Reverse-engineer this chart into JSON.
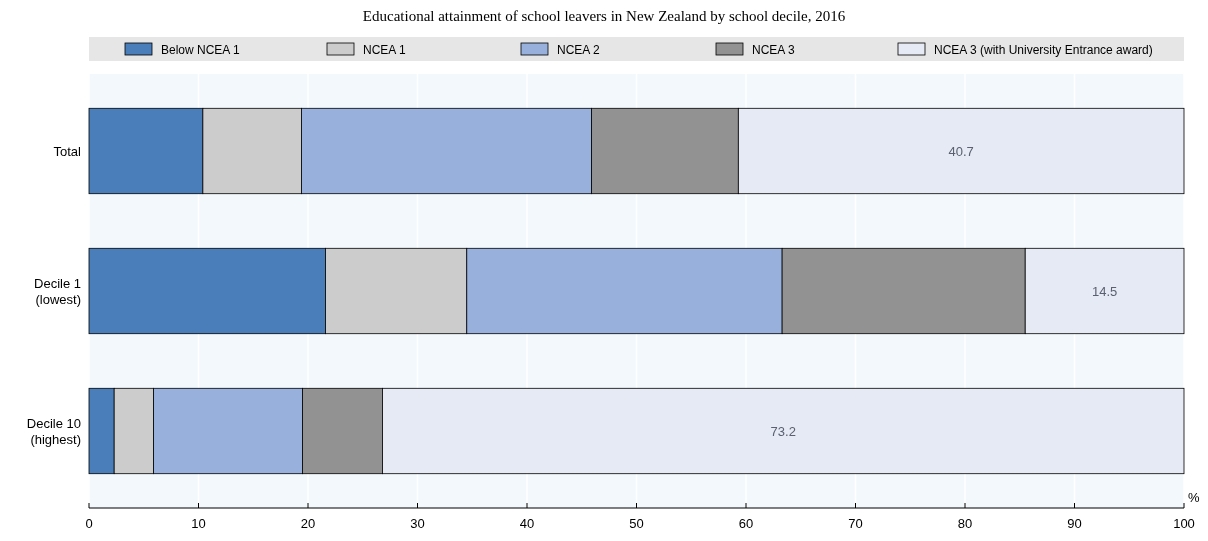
{
  "chart_data": {
    "type": "bar",
    "orientation": "horizontal",
    "stacked": true,
    "title": "Educational attainment of school leavers in New Zealand by school decile, 2016",
    "xlabel": "%",
    "categories": [
      "Total",
      "Decile 1\n(lowest)",
      "Decile 10\n(highest)"
    ],
    "series": [
      {
        "name": "Below NCEA 1",
        "color": "#4a7ebb",
        "values": [
          10.4,
          21.6,
          2.3
        ]
      },
      {
        "name": "NCEA 1",
        "color": "#cccccc",
        "values": [
          9.0,
          12.9,
          3.6
        ]
      },
      {
        "name": "NCEA 2",
        "color": "#97b1dc",
        "values": [
          26.5,
          28.8,
          13.6
        ]
      },
      {
        "name": "NCEA 3",
        "color": "#929292",
        "values": [
          13.4,
          22.2,
          7.3
        ]
      },
      {
        "name": "NCEA 3 (with University Entrance award)",
        "color": "#e6eaf4",
        "values": [
          40.7,
          14.5,
          73.2
        ],
        "value_labels": [
          "40.7",
          "14.5",
          "73.2"
        ]
      }
    ],
    "xlim": [
      0,
      100
    ],
    "xticks": [
      0,
      10,
      20,
      30,
      40,
      50,
      60,
      70,
      80,
      90,
      100
    ],
    "grid": "x",
    "legend": "top"
  }
}
